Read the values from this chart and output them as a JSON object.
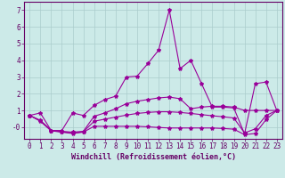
{
  "title": "",
  "xlabel": "Windchill (Refroidissement éolien,°C)",
  "background_color": "#cceae8",
  "grid_color": "#aacccc",
  "line_color": "#990099",
  "x_values": [
    0,
    1,
    2,
    3,
    4,
    5,
    6,
    7,
    8,
    9,
    10,
    11,
    12,
    13,
    14,
    15,
    16,
    17,
    18,
    19,
    20,
    21,
    22,
    23
  ],
  "line1": [
    0.7,
    0.85,
    -0.2,
    -0.2,
    0.85,
    0.7,
    1.3,
    1.65,
    1.85,
    3.0,
    3.05,
    3.8,
    4.6,
    7.0,
    3.5,
    4.0,
    2.6,
    1.2,
    1.2,
    1.15,
    -0.4,
    2.6,
    2.7,
    1.0
  ],
  "line2": [
    0.7,
    0.4,
    -0.2,
    -0.25,
    -0.3,
    -0.25,
    0.65,
    0.85,
    1.1,
    1.4,
    1.55,
    1.65,
    1.75,
    1.8,
    1.7,
    1.1,
    1.2,
    1.25,
    1.25,
    1.2,
    1.0,
    1.0,
    1.0,
    1.0
  ],
  "line3": [
    0.7,
    0.4,
    -0.2,
    -0.28,
    -0.35,
    -0.28,
    0.35,
    0.48,
    0.6,
    0.72,
    0.82,
    0.88,
    0.92,
    0.92,
    0.88,
    0.82,
    0.75,
    0.68,
    0.62,
    0.55,
    -0.35,
    -0.1,
    0.7,
    1.0
  ],
  "line4": [
    0.7,
    0.35,
    -0.22,
    -0.3,
    -0.38,
    -0.3,
    0.05,
    0.05,
    0.05,
    0.05,
    0.05,
    0.02,
    -0.02,
    -0.05,
    -0.05,
    -0.05,
    -0.05,
    -0.05,
    -0.08,
    -0.12,
    -0.45,
    -0.38,
    0.45,
    1.0
  ],
  "ylim": [
    -0.7,
    7.5
  ],
  "yticks": [
    0,
    1,
    2,
    3,
    4,
    5,
    6,
    7
  ],
  "xlim": [
    -0.5,
    23.5
  ],
  "markersize": 3,
  "linewidth": 0.8,
  "font_color": "#660066",
  "font_size": 5.5,
  "xlabel_size": 6.0
}
